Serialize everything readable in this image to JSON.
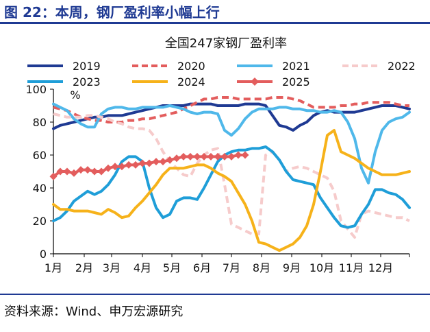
{
  "figure": {
    "title": "图 22：本周，钢厂盈利率小幅上行",
    "source": "资料来源：Wind、申万宏源研究"
  },
  "chart_data": {
    "type": "line",
    "title": "全国247家钢厂盈利率",
    "ylabel": "%",
    "xlabel": "",
    "ylim": [
      0,
      100
    ],
    "yticks": [
      0,
      20,
      40,
      60,
      80,
      100
    ],
    "xlim": [
      1,
      53
    ],
    "month_ticks": [
      {
        "label": "1月",
        "week": 1
      },
      {
        "label": "2月",
        "week": 5.5
      },
      {
        "label": "3月",
        "week": 9.5
      },
      {
        "label": "4月",
        "week": 14
      },
      {
        "label": "5月",
        "week": 18.3
      },
      {
        "label": "6月",
        "week": 22.7
      },
      {
        "label": "7月",
        "week": 27
      },
      {
        "label": "8月",
        "week": 31.4
      },
      {
        "label": "9月",
        "week": 35.8
      },
      {
        "label": "10月",
        "week": 40.2
      },
      {
        "label": "11月",
        "week": 44.5
      },
      {
        "label": "12月",
        "week": 48.8
      }
    ],
    "grid": false,
    "legend": "top",
    "series": [
      {
        "name": "2019",
        "color": "#1f3a93",
        "dash": "solid",
        "marker": "none",
        "values": [
          76,
          78,
          79,
          80,
          81,
          82,
          83,
          83,
          84,
          84,
          84,
          85,
          86,
          87,
          88,
          89,
          90,
          90,
          90,
          90,
          91,
          91,
          91,
          91,
          90,
          90,
          90,
          90,
          91,
          91,
          91,
          90,
          84,
          78,
          77,
          75,
          78,
          80,
          84,
          86,
          87,
          86,
          86,
          86,
          86,
          87,
          88,
          89,
          90,
          90,
          90,
          89,
          88
        ]
      },
      {
        "name": "2020",
        "color": "#e35d5d",
        "dash": "dash",
        "marker": "none",
        "values": [
          89,
          88,
          87,
          85,
          83,
          82,
          81,
          81,
          80,
          80,
          80,
          81,
          81,
          82,
          82,
          83,
          84,
          85,
          86,
          88,
          90,
          92,
          94,
          94,
          95,
          95,
          95,
          94,
          94,
          94,
          94,
          94,
          95,
          95,
          95,
          94,
          93,
          91,
          89,
          89,
          89,
          89,
          90,
          90,
          91,
          91,
          92,
          92,
          92,
          92,
          91,
          90,
          90
        ]
      },
      {
        "name": "2021",
        "color": "#4fb8ea",
        "dash": "solid",
        "marker": "none",
        "values": [
          91,
          89,
          87,
          82,
          79,
          77,
          77,
          85,
          88,
          89,
          89,
          88,
          88,
          89,
          89,
          89,
          89,
          90,
          89,
          88,
          86,
          85,
          86,
          86,
          85,
          75,
          72,
          76,
          82,
          86,
          88,
          88,
          88,
          89,
          89,
          88,
          88,
          87,
          87,
          86,
          86,
          87,
          86,
          80,
          70,
          52,
          43,
          62,
          75,
          80,
          82,
          83,
          86
        ]
      },
      {
        "name": "2022",
        "color": "#f6cbcb",
        "dash": "dash",
        "marker": "none",
        "values": [
          85,
          84,
          83,
          83,
          83,
          84,
          84,
          83,
          82,
          80,
          79,
          77,
          76,
          76,
          75,
          70,
          62,
          56,
          52,
          48,
          47,
          55,
          60,
          63,
          64,
          42,
          18,
          16,
          14,
          12,
          12,
          60,
          62,
          57,
          50,
          52,
          53,
          52,
          50,
          48,
          46,
          38,
          20,
          15,
          10,
          24,
          26,
          25,
          24,
          23,
          22,
          22,
          20
        ]
      },
      {
        "name": "2023",
        "color": "#1f9ed8",
        "dash": "solid",
        "marker": "none",
        "values": [
          20,
          22,
          26,
          32,
          35,
          38,
          36,
          38,
          42,
          48,
          56,
          59,
          59,
          56,
          40,
          28,
          22,
          24,
          32,
          34,
          34,
          33,
          40,
          48,
          56,
          60,
          62,
          63,
          63,
          64,
          64,
          65,
          62,
          57,
          50,
          45,
          44,
          43,
          42,
          34,
          28,
          22,
          17,
          16,
          17,
          24,
          30,
          39,
          39,
          37,
          36,
          33,
          28
        ]
      },
      {
        "name": "2024",
        "color": "#f6b21a",
        "dash": "solid",
        "marker": "none",
        "values": [
          30,
          27,
          27,
          26,
          26,
          26,
          25,
          24,
          27,
          25,
          22,
          23,
          28,
          32,
          37,
          42,
          48,
          52,
          52,
          52,
          53,
          54,
          54,
          52,
          49,
          47,
          44,
          37,
          30,
          20,
          7,
          6,
          4,
          2,
          4,
          6,
          10,
          17,
          30,
          50,
          72,
          75,
          62,
          60,
          58,
          55,
          52,
          50,
          48,
          48,
          48,
          49,
          50
        ]
      },
      {
        "name": "2025",
        "color": "#e35d5d",
        "dash": "solid",
        "marker": "diamond",
        "values": [
          47,
          50,
          50,
          49,
          51,
          51,
          50,
          50,
          52,
          53,
          53,
          54,
          54,
          55,
          55,
          56,
          56,
          57,
          58,
          59,
          59,
          59,
          59,
          59,
          59,
          59,
          59,
          60,
          60
        ]
      }
    ]
  }
}
